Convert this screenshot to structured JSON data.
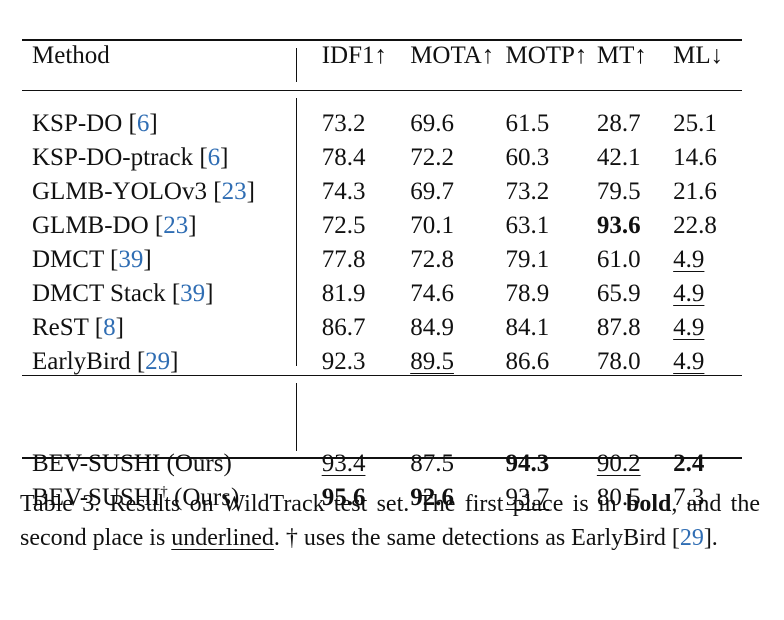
{
  "table": {
    "headers": [
      "Method",
      "IDF1↑",
      "MOTA↑",
      "MOTP↑",
      "MT↑",
      "ML↓"
    ],
    "rows": [
      {
        "name": "KSP-DO ",
        "cite": "6",
        "cells": [
          {
            "v": "73.2"
          },
          {
            "v": "69.6"
          },
          {
            "v": "61.5"
          },
          {
            "v": "28.7"
          },
          {
            "v": "25.1"
          }
        ]
      },
      {
        "name": "KSP-DO-ptrack ",
        "cite": "6",
        "cells": [
          {
            "v": "78.4"
          },
          {
            "v": "72.2"
          },
          {
            "v": "60.3"
          },
          {
            "v": "42.1"
          },
          {
            "v": "14.6"
          }
        ]
      },
      {
        "name": "GLMB-YOLOv3 ",
        "cite": "23",
        "cells": [
          {
            "v": "74.3"
          },
          {
            "v": "69.7"
          },
          {
            "v": "73.2"
          },
          {
            "v": "79.5"
          },
          {
            "v": "21.6"
          }
        ]
      },
      {
        "name": "GLMB-DO ",
        "cite": "23",
        "cells": [
          {
            "v": "72.5"
          },
          {
            "v": "70.1"
          },
          {
            "v": "63.1"
          },
          {
            "v": "93.6",
            "s": "bold"
          },
          {
            "v": "22.8"
          }
        ]
      },
      {
        "name": "DMCT ",
        "cite": "39",
        "cells": [
          {
            "v": "77.8"
          },
          {
            "v": "72.8"
          },
          {
            "v": "79.1"
          },
          {
            "v": "61.0"
          },
          {
            "v": "4.9",
            "s": "under"
          }
        ]
      },
      {
        "name": "DMCT Stack ",
        "cite": "39",
        "cells": [
          {
            "v": "81.9"
          },
          {
            "v": "74.6"
          },
          {
            "v": "78.9"
          },
          {
            "v": "65.9"
          },
          {
            "v": "4.9",
            "s": "under"
          }
        ]
      },
      {
        "name": "ReST ",
        "cite": "8",
        "cells": [
          {
            "v": "86.7"
          },
          {
            "v": "84.9"
          },
          {
            "v": "84.1"
          },
          {
            "v": "87.8"
          },
          {
            "v": "4.9",
            "s": "under"
          }
        ]
      },
      {
        "name": "EarlyBird ",
        "cite": "29",
        "cells": [
          {
            "v": "92.3"
          },
          {
            "v": "89.5",
            "s": "under"
          },
          {
            "v": "86.6"
          },
          {
            "v": "78.0"
          },
          {
            "v": "4.9",
            "s": "under"
          }
        ]
      }
    ],
    "ours": [
      {
        "name": "BEV-SUSHI",
        "sup": "",
        "suffix": " (Ours)",
        "cells": [
          {
            "v": "93.4",
            "s": "under"
          },
          {
            "v": "87.5"
          },
          {
            "v": "94.3",
            "s": "bold"
          },
          {
            "v": "90.2",
            "s": "under"
          },
          {
            "v": "2.4",
            "s": "bold"
          }
        ]
      },
      {
        "name": "BEV-SUSHI",
        "sup": "†",
        "suffix": " (Ours)",
        "cells": [
          {
            "v": "95.6",
            "s": "bold"
          },
          {
            "v": "92.6",
            "s": "bold"
          },
          {
            "v": "93.7",
            "s": "under"
          },
          {
            "v": "80.5"
          },
          {
            "v": "7.3"
          }
        ]
      }
    ]
  },
  "caption": {
    "part1": "Table 3. Results on WildTrack test set. The first place is in ",
    "bold_word": "bold",
    "part2": ", and the second place is ",
    "underlined_word": "underlined",
    "part3": ". † uses the same detections as EarlyBird [",
    "cite": "29",
    "part4": "]."
  },
  "colors": {
    "citation": "#2f6db3",
    "text": "#111111"
  }
}
